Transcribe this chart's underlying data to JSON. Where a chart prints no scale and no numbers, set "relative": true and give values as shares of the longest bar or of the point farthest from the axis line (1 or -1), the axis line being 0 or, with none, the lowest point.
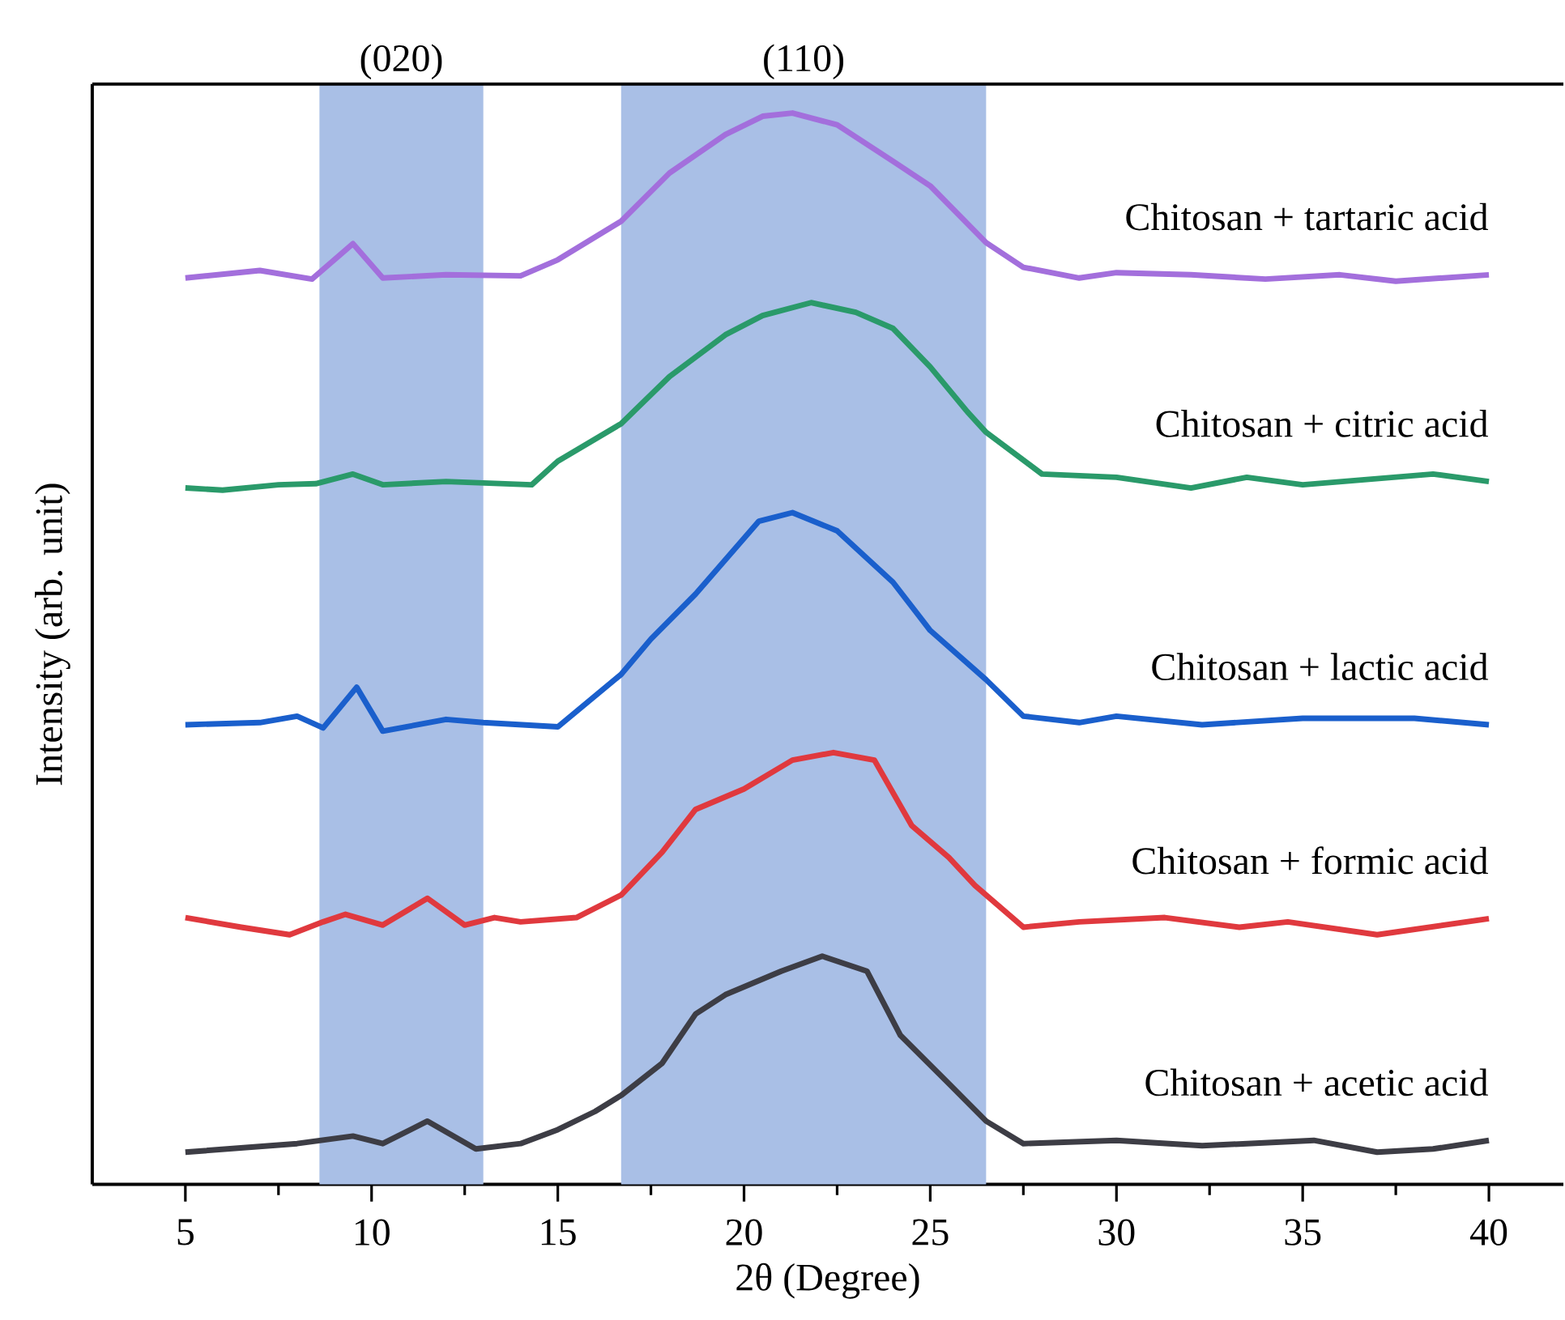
{
  "chart_data": {
    "type": "line",
    "relative": true,
    "xlabel": "2θ (Degree)",
    "ylabel": "Intensity (arb. unit)",
    "xlim": [
      2.5,
      42
    ],
    "xticks": [
      5,
      10,
      15,
      20,
      25,
      30,
      35,
      40
    ],
    "marker": "none",
    "line_style": "solid",
    "bands": [
      {
        "axis": "x",
        "from": 8.6,
        "to": 13.0,
        "label": "(020)",
        "color": "#a9bfe6"
      },
      {
        "axis": "x",
        "from": 16.7,
        "to": 26.5,
        "label": "(110)",
        "color": "#a9bfe6"
      }
    ],
    "series": [
      {
        "name": "Chitosan + tartaric acid",
        "color": "#a36fdc",
        "x": [
          5,
          7,
          8.4,
          9.5,
          10.3,
          12,
          14,
          15,
          16.7,
          18,
          19.5,
          20.5,
          21.3,
          22.5,
          24,
          25,
          26.5,
          27.5,
          29,
          30,
          32,
          34,
          36,
          37.5,
          40
        ],
        "values": [
          0.846,
          0.853,
          0.845,
          0.878,
          0.846,
          0.849,
          0.848,
          0.863,
          0.899,
          0.944,
          0.98,
          0.997,
          1.0,
          0.989,
          0.955,
          0.932,
          0.879,
          0.856,
          0.846,
          0.851,
          0.849,
          0.845,
          0.849,
          0.843,
          0.849
        ]
      },
      {
        "name": "Chitosan + citric acid",
        "color": "#2a9a6a",
        "x": [
          5,
          6,
          7.5,
          8.5,
          9.5,
          10.3,
          12,
          14.3,
          15,
          16.7,
          18,
          19.5,
          20.5,
          21.8,
          23,
          24,
          25,
          26,
          26.5,
          28,
          30,
          32,
          33.5,
          35,
          38.5,
          40
        ],
        "values": [
          0.65,
          0.648,
          0.653,
          0.654,
          0.663,
          0.653,
          0.656,
          0.653,
          0.675,
          0.71,
          0.754,
          0.793,
          0.811,
          0.823,
          0.814,
          0.799,
          0.763,
          0.721,
          0.702,
          0.663,
          0.66,
          0.65,
          0.66,
          0.653,
          0.663,
          0.656
        ]
      },
      {
        "name": "Chitosan + lactic acid",
        "color": "#1a5fcc",
        "x": [
          5,
          7,
          8,
          8.7,
          9.6,
          10.3,
          12,
          13,
          15,
          16.7,
          17.5,
          18.7,
          20.4,
          21.3,
          22.5,
          24,
          25,
          26.5,
          27.5,
          29,
          30,
          32.3,
          35,
          38,
          40
        ],
        "values": [
          0.429,
          0.431,
          0.437,
          0.426,
          0.464,
          0.423,
          0.434,
          0.431,
          0.427,
          0.476,
          0.509,
          0.551,
          0.619,
          0.627,
          0.61,
          0.562,
          0.517,
          0.471,
          0.437,
          0.431,
          0.437,
          0.429,
          0.435,
          0.435,
          0.429
        ]
      },
      {
        "name": "Chitosan + formic acid",
        "color": "#e0393e",
        "x": [
          5,
          6.5,
          7.8,
          8.7,
          9.3,
          10.3,
          11.5,
          12.5,
          13.3,
          14,
          15.5,
          16.7,
          17.8,
          18.7,
          20,
          21.3,
          22.4,
          23.5,
          24.5,
          25.5,
          26.2,
          27.5,
          29,
          31.3,
          33.3,
          34.6,
          37,
          40
        ],
        "values": [
          0.249,
          0.24,
          0.233,
          0.245,
          0.252,
          0.242,
          0.267,
          0.242,
          0.249,
          0.245,
          0.249,
          0.27,
          0.31,
          0.35,
          0.369,
          0.396,
          0.403,
          0.396,
          0.335,
          0.305,
          0.279,
          0.24,
          0.245,
          0.249,
          0.24,
          0.245,
          0.233,
          0.248
        ]
      },
      {
        "name": "Chitosan + acetic acid",
        "color": "#3d3d45",
        "x": [
          5,
          8,
          9.5,
          10.3,
          11.5,
          12.8,
          14,
          15,
          16,
          16.7,
          17.8,
          18.7,
          19.5,
          21,
          22.1,
          23.3,
          24.2,
          25.5,
          26.5,
          27.5,
          30,
          32.3,
          35.3,
          37,
          38.5,
          40
        ],
        "values": [
          0.03,
          0.038,
          0.045,
          0.038,
          0.059,
          0.033,
          0.038,
          0.051,
          0.068,
          0.083,
          0.113,
          0.159,
          0.177,
          0.199,
          0.213,
          0.199,
          0.139,
          0.094,
          0.059,
          0.038,
          0.041,
          0.036,
          0.041,
          0.03,
          0.033,
          0.041
        ]
      }
    ]
  }
}
